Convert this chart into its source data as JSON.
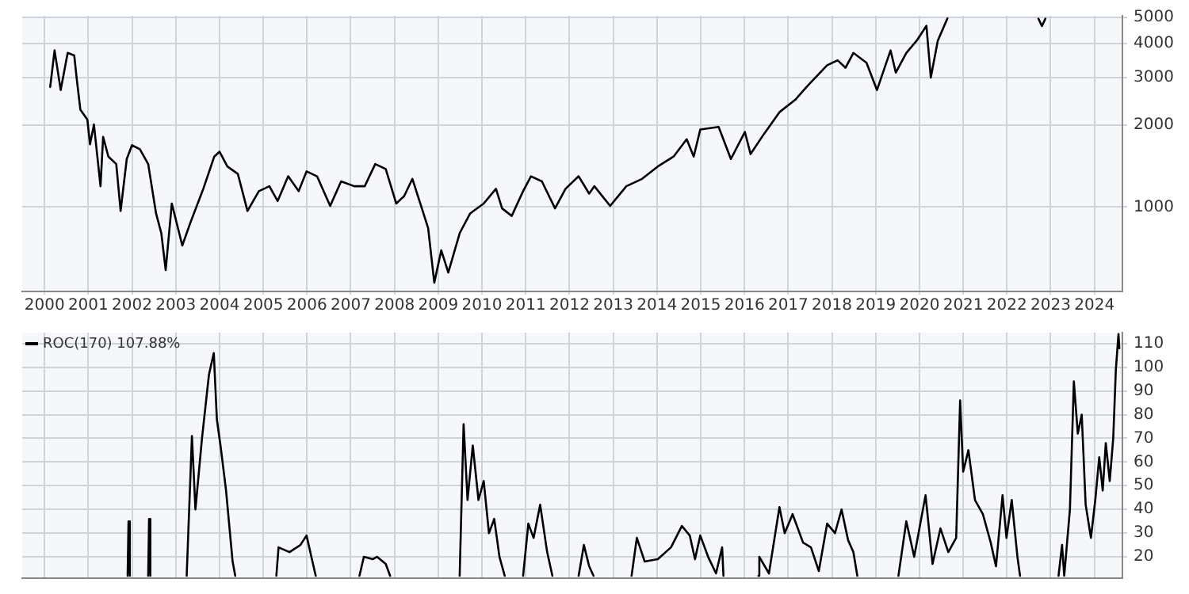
{
  "chart_data": [
    {
      "type": "line",
      "log": "y",
      "grid": true,
      "legend": false,
      "marker": "none",
      "line_style": "solid",
      "xlim": [
        1999.49,
        2024.64
      ],
      "ylim": [
        488,
        5070
      ],
      "xticks": [
        2000,
        2001,
        2002,
        2003,
        2004,
        2005,
        2006,
        2007,
        2008,
        2009,
        2010,
        2011,
        2012,
        2013,
        2014,
        2015,
        2016,
        2017,
        2018,
        2019,
        2020,
        2021,
        2022,
        2023,
        2024
      ],
      "yticks": [
        1000,
        2000,
        3000,
        4000,
        5000
      ],
      "x": [
        2000.13,
        2000.23,
        2000.37,
        2000.53,
        2000.68,
        2000.74,
        2000.82,
        2000.98,
        2001.04,
        2001.13,
        2001.28,
        2001.34,
        2001.46,
        2001.64,
        2001.74,
        2001.88,
        2002.0,
        2002.18,
        2002.37,
        2002.55,
        2002.67,
        2002.77,
        2002.91,
        2003.15,
        2003.33,
        2003.63,
        2003.88,
        2004.0,
        2004.18,
        2004.42,
        2004.64,
        2004.9,
        2005.14,
        2005.33,
        2005.57,
        2005.81,
        2005.99,
        2006.23,
        2006.53,
        2006.78,
        2007.08,
        2007.32,
        2007.56,
        2007.8,
        2008.04,
        2008.22,
        2008.41,
        2008.59,
        2008.77,
        2008.91,
        2009.07,
        2009.23,
        2009.49,
        2009.73,
        2010.04,
        2010.32,
        2010.46,
        2010.68,
        2010.94,
        2011.12,
        2011.37,
        2011.67,
        2011.91,
        2012.21,
        2012.45,
        2012.57,
        2012.93,
        2013.3,
        2013.66,
        2014.02,
        2014.38,
        2014.68,
        2014.84,
        2014.99,
        2015.41,
        2015.69,
        2016.01,
        2016.14,
        2016.44,
        2016.8,
        2017.16,
        2017.46,
        2017.89,
        2018.13,
        2018.31,
        2018.49,
        2018.79,
        2019.03,
        2019.34,
        2019.46,
        2019.7,
        2019.94,
        2020.16,
        2020.26,
        2020.42,
        2020.64,
        2020.7,
        2022.72,
        2022.8,
        2022.88
      ],
      "series": [
        {
          "color": "#000000",
          "values": [
            2770,
            3780,
            2700,
            3700,
            3620,
            2940,
            2285,
            2100,
            1703,
            2015,
            1193,
            1815,
            1534,
            1440,
            967,
            1503,
            1690,
            1633,
            1440,
            947,
            800,
            585,
            1030,
            721,
            871,
            1167,
            1534,
            1600,
            1411,
            1324,
            967,
            1144,
            1193,
            1052,
            1298,
            1144,
            1353,
            1298,
            1009,
            1243,
            1193,
            1193,
            1440,
            1381,
            1030,
            1096,
            1270,
            1030,
            835,
            526,
            692,
            573,
            800,
            947,
            1030,
            1167,
            988,
            927,
            1144,
            1298,
            1243,
            988,
            1167,
            1298,
            1120,
            1193,
            1009,
            1193,
            1270,
            1411,
            1534,
            1778,
            1534,
            1931,
            1973,
            1503,
            1892,
            1567,
            1853,
            2237,
            2484,
            2818,
            3334,
            3475,
            3262,
            3700,
            3403,
            2700,
            3780,
            3131,
            3700,
            4110,
            4660,
            3000,
            4110,
            4960,
            null,
            4950,
            4650,
            4950
          ]
        }
      ]
    },
    {
      "type": "line",
      "grid": true,
      "legend": "top left",
      "marker": "none",
      "line_style": "solid",
      "tick_labels": "y",
      "xlim": [
        1999.49,
        2024.64
      ],
      "ylim": [
        11,
        114.6
      ],
      "xticks": [
        2000,
        2001,
        2002,
        2003,
        2004,
        2005,
        2006,
        2007,
        2008,
        2009,
        2010,
        2011,
        2012,
        2013,
        2014,
        2015,
        2016,
        2017,
        2018,
        2019,
        2020,
        2021,
        2022,
        2023,
        2024
      ],
      "yticks": [
        20,
        30,
        40,
        50,
        60,
        70,
        80,
        90,
        100,
        110
      ],
      "x": [
        2001.9,
        2001.92,
        2001.95,
        2002.0,
        2002.37,
        2002.39,
        2002.42,
        2002.5,
        2003.25,
        2003.37,
        2003.45,
        2003.6,
        2003.76,
        2003.87,
        2003.94,
        2004.03,
        2004.15,
        2004.3,
        2004.36,
        2004.5,
        2005.3,
        2005.35,
        2005.6,
        2005.85,
        2005.99,
        2006.1,
        2006.2,
        2006.3,
        2007.2,
        2007.3,
        2007.5,
        2007.6,
        2007.8,
        2007.9,
        2008.0,
        2009.49,
        2009.58,
        2009.67,
        2009.79,
        2009.92,
        2010.04,
        2010.16,
        2010.28,
        2010.4,
        2010.52,
        2010.6,
        2010.94,
        2011.06,
        2011.18,
        2011.33,
        2011.49,
        2011.61,
        2011.7,
        2012.21,
        2012.33,
        2012.45,
        2012.55,
        2012.6,
        2013.42,
        2013.54,
        2013.72,
        2014.02,
        2014.32,
        2014.57,
        2014.75,
        2014.87,
        2014.99,
        2015.17,
        2015.35,
        2015.49,
        2015.52,
        2015.6,
        2016.32,
        2016.34,
        2016.56,
        2016.8,
        2016.92,
        2017.1,
        2017.34,
        2017.52,
        2017.7,
        2017.89,
        2018.07,
        2018.22,
        2018.37,
        2018.49,
        2018.58,
        2018.7,
        2019.52,
        2019.7,
        2019.88,
        2020.14,
        2020.3,
        2020.48,
        2020.66,
        2020.84,
        2020.93,
        2021.0,
        2021.12,
        2021.27,
        2021.45,
        2021.63,
        2021.75,
        2021.9,
        2021.99,
        2022.11,
        2022.24,
        2022.3,
        2022.4,
        2023.18,
        2023.26,
        2023.31,
        2023.44,
        2023.53,
        2023.62,
        2023.71,
        2023.8,
        2023.92,
        2024.02,
        2024.11,
        2024.19,
        2024.26,
        2024.35,
        2024.43,
        2024.49,
        2024.55,
        2024.57
      ],
      "series": [
        {
          "name": "ROC(170) 107.88%",
          "color": "#000000",
          "values": [
            12,
            35,
            12,
            null,
            12,
            36,
            12,
            null,
            12,
            71,
            40,
            70,
            97,
            106,
            78,
            66,
            48,
            18,
            12,
            null,
            12,
            24,
            22,
            25,
            29,
            20,
            12,
            null,
            12,
            20,
            19,
            20,
            17,
            12,
            null,
            12,
            76,
            44,
            67,
            44,
            52,
            30,
            36,
            20,
            12,
            null,
            12,
            34,
            28,
            42,
            22,
            12,
            null,
            12,
            25,
            16,
            12,
            null,
            12,
            28,
            18,
            19,
            24,
            33,
            29,
            19,
            29,
            20,
            13,
            24,
            12,
            null,
            12,
            20,
            13,
            41,
            30,
            38,
            26,
            24,
            14,
            34,
            30,
            40,
            27,
            22,
            12,
            null,
            12,
            35,
            20,
            46,
            17,
            32,
            22,
            28,
            86,
            56,
            65,
            44,
            38,
            26,
            16,
            46,
            28,
            44,
            20,
            12,
            null,
            12,
            25,
            12,
            40,
            94,
            72,
            80,
            42,
            28,
            44,
            62,
            48,
            68,
            52,
            70,
            99,
            114,
            108
          ]
        }
      ]
    }
  ]
}
